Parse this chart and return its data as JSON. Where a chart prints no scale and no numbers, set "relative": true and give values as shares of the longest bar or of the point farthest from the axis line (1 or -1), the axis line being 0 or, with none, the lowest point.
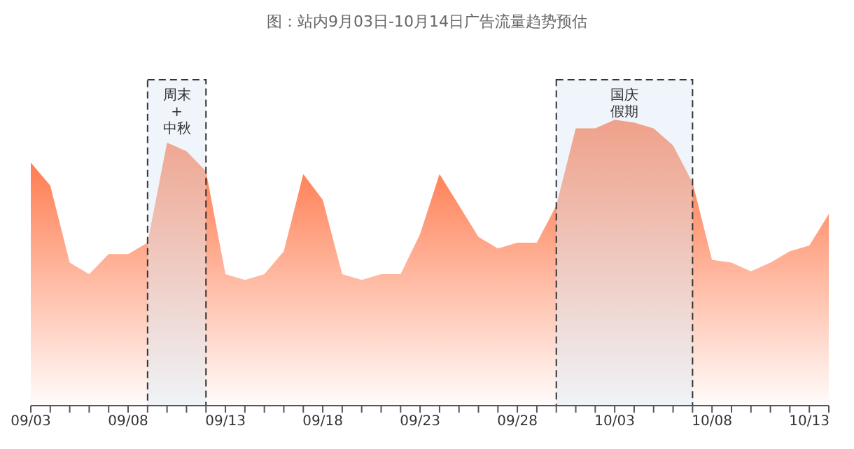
{
  "chart_data": {
    "type": "area",
    "title": "图：站内9月03日-10月14日广告流量趋势预估",
    "relative": true,
    "x": [
      "--09-03",
      "--09-04",
      "--09-05",
      "--09-06",
      "--09-07",
      "--09-08",
      "--09-09",
      "--09-10",
      "--09-11",
      "--09-12",
      "--09-13",
      "--09-14",
      "--09-15",
      "--09-16",
      "--09-17",
      "--09-18",
      "--09-19",
      "--09-20",
      "--09-21",
      "--09-22",
      "--09-23",
      "--09-24",
      "--09-25",
      "--09-26",
      "--09-27",
      "--09-28",
      "--09-29",
      "--09-30",
      "--10-01",
      "--10-02",
      "--10-03",
      "--10-04",
      "--10-05",
      "--10-06",
      "--10-07",
      "--10-08",
      "--10-09",
      "--10-10",
      "--10-11",
      "--10-12",
      "--10-13",
      "--10-14"
    ],
    "series": [
      {
        "color": "#ff6633",
        "values": [
          0.85,
          0.77,
          0.5,
          0.46,
          0.53,
          0.53,
          0.57,
          0.92,
          0.89,
          0.82,
          0.46,
          0.44,
          0.46,
          0.54,
          0.81,
          0.72,
          0.46,
          0.44,
          0.46,
          0.46,
          0.6,
          0.81,
          0.7,
          0.59,
          0.55,
          0.57,
          0.57,
          0.7,
          0.97,
          0.97,
          1,
          0.99,
          0.97,
          0.91,
          0.78,
          0.51,
          0.5,
          0.47,
          0.5,
          0.54,
          0.56,
          0.67
        ]
      }
    ],
    "xlim": [
      "--09-03",
      "--10-14"
    ],
    "xticks": [
      {
        "value": "--09-03",
        "label": "09/03"
      },
      {
        "value": "--09-04",
        "label": null
      },
      {
        "value": "--09-05",
        "label": null
      },
      {
        "value": "--09-06",
        "label": null
      },
      {
        "value": "--09-07",
        "label": null
      },
      {
        "value": "--09-08",
        "label": "09/08"
      },
      {
        "value": "--09-09",
        "label": null
      },
      {
        "value": "--09-10",
        "label": null
      },
      {
        "value": "--09-11",
        "label": null
      },
      {
        "value": "--09-12",
        "label": null
      },
      {
        "value": "--09-13",
        "label": "09/13"
      },
      {
        "value": "--09-14",
        "label": null
      },
      {
        "value": "--09-15",
        "label": null
      },
      {
        "value": "--09-16",
        "label": null
      },
      {
        "value": "--09-17",
        "label": null
      },
      {
        "value": "--09-18",
        "label": "09/18"
      },
      {
        "value": "--09-19",
        "label": null
      },
      {
        "value": "--09-20",
        "label": null
      },
      {
        "value": "--09-21",
        "label": null
      },
      {
        "value": "--09-22",
        "label": null
      },
      {
        "value": "--09-23",
        "label": "09/23"
      },
      {
        "value": "--09-24",
        "label": null
      },
      {
        "value": "--09-25",
        "label": null
      },
      {
        "value": "--09-26",
        "label": null
      },
      {
        "value": "--09-27",
        "label": null
      },
      {
        "value": "--09-28",
        "label": "09/28"
      },
      {
        "value": "--09-29",
        "label": null
      },
      {
        "value": "--09-30",
        "label": null
      },
      {
        "value": "--10-01",
        "label": null
      },
      {
        "value": "--10-02",
        "label": null
      },
      {
        "value": "--10-03",
        "label": "10/03"
      },
      {
        "value": "--10-04",
        "label": null
      },
      {
        "value": "--10-05",
        "label": null
      },
      {
        "value": "--10-06",
        "label": null
      },
      {
        "value": "--10-07",
        "label": null
      },
      {
        "value": "--10-08",
        "label": "10/08"
      },
      {
        "value": "--10-09",
        "label": null
      },
      {
        "value": "--10-10",
        "label": null
      },
      {
        "value": "--10-11",
        "label": null
      },
      {
        "value": "--10-12",
        "label": null
      },
      {
        "value": "--10-13",
        "label": "10/13"
      },
      {
        "value": "--10-14",
        "label": null
      }
    ],
    "bands": [
      {
        "axis": "x",
        "from": "--09-09",
        "to": "--09-12",
        "label": "周末+中秋",
        "color": "#dce8f5"
      },
      {
        "axis": "x",
        "from": "--09-30",
        "to": "--10-07",
        "label": "国庆假期",
        "color": "#dce8f5"
      }
    ],
    "grid": false,
    "legend": false
  }
}
